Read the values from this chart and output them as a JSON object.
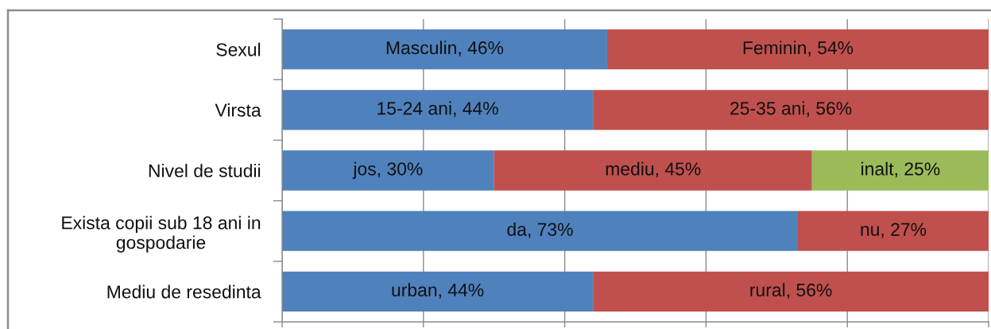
{
  "chart_data": {
    "type": "bar",
    "orientation": "horizontal",
    "stacked": true,
    "categories": [
      "Sexul",
      "Virsta",
      "Nivel de studii",
      "Exista copii sub 18 ani in gospodarie",
      "Mediu de resedinta"
    ],
    "series": [
      {
        "color": "#4f81bd",
        "values": [
          46,
          44,
          30,
          73,
          44
        ],
        "value_labels": [
          "Masculin, 46%",
          "15-24 ani, 44%",
          "jos, 30%",
          "da, 73%",
          "urban, 44%"
        ]
      },
      {
        "color": "#c0504d",
        "values": [
          54,
          56,
          45,
          27,
          56
        ],
        "value_labels": [
          "Feminin, 54%",
          "25-35 ani, 56%",
          "mediu, 45%",
          "nu, 27%",
          "rural, 56%"
        ]
      },
      {
        "color": "#9bbb59",
        "values": [
          null,
          null,
          25,
          null,
          null
        ],
        "value_labels": [
          null,
          null,
          "inalt, 25%",
          null,
          null
        ]
      }
    ],
    "xlim": [
      0,
      100
    ],
    "xticks": [
      {
        "value": 0,
        "label": null
      },
      {
        "value": 20,
        "label": null
      },
      {
        "value": 40,
        "label": null
      },
      {
        "value": 60,
        "label": null
      },
      {
        "value": 80,
        "label": null
      },
      {
        "value": 100,
        "label": null
      }
    ],
    "grid": "x",
    "tick_labels": "y"
  }
}
